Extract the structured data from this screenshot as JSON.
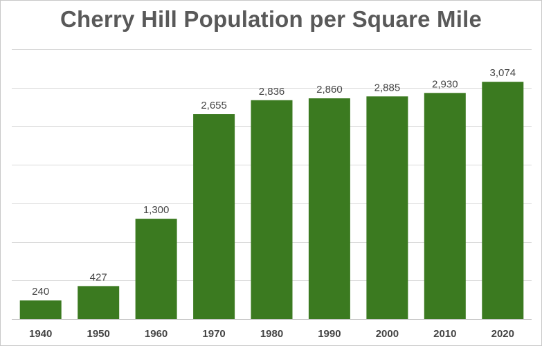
{
  "chart_data": {
    "type": "bar",
    "title": "Cherry Hill Population per Square Mile",
    "xlabel": "",
    "ylabel": "",
    "categories": [
      "1940",
      "1950",
      "1960",
      "1970",
      "1980",
      "1990",
      "2000",
      "2010",
      "2020"
    ],
    "values": [
      240,
      427,
      1300,
      2655,
      2836,
      2860,
      2885,
      2930,
      3074
    ],
    "value_labels": [
      "240",
      "427",
      "1,300",
      "2,655",
      "2,836",
      "2,860",
      "2,885",
      "2,930",
      "3,074"
    ],
    "ylim": [
      0,
      3500
    ],
    "grid": true,
    "legend": "none",
    "bar_color": "#3b7a20",
    "grid_color": "#d9d9d9"
  }
}
